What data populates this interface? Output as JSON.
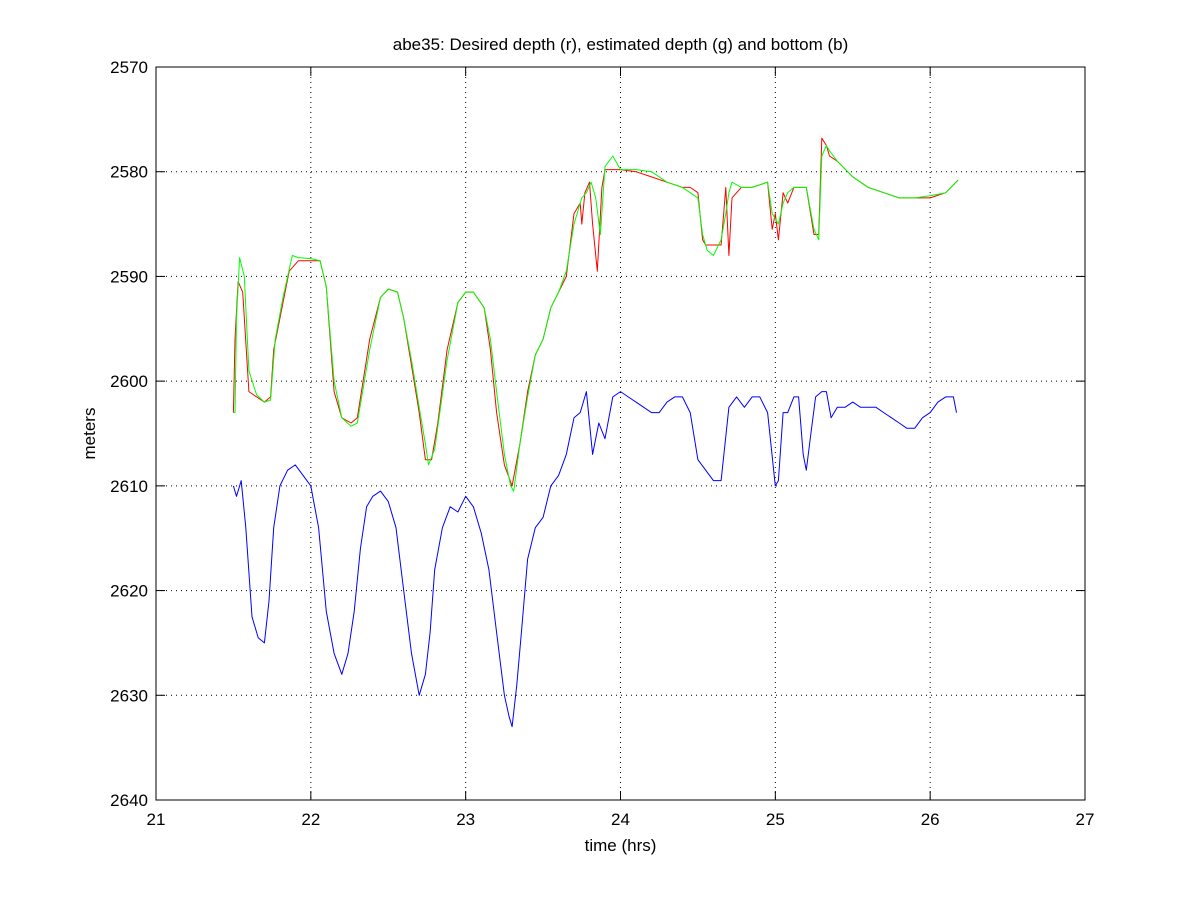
{
  "chart_data": {
    "type": "line",
    "title": "abe35: Desired depth (r), estimated depth (g) and bottom (b)",
    "xlabel": "time (hrs)",
    "ylabel": "meters",
    "xlim": [
      21,
      27
    ],
    "ylim": [
      2570,
      2640
    ],
    "y_reversed": true,
    "grid": true,
    "grid_style": "dotted",
    "xticks": [
      21,
      22,
      23,
      24,
      25,
      26,
      27
    ],
    "yticks": [
      2570,
      2580,
      2590,
      2600,
      2610,
      2620,
      2630,
      2640
    ],
    "xtick_labels": [
      "21",
      "22",
      "23",
      "24",
      "25",
      "26",
      "27"
    ],
    "ytick_labels": [
      "2570",
      "2580",
      "2590",
      "2600",
      "2610",
      "2620",
      "2630",
      "2640"
    ],
    "series": [
      {
        "key": "desired",
        "color": "#ff0000",
        "x": [
          21.5,
          21.51,
          21.53,
          21.56,
          21.6,
          21.65,
          21.7,
          21.74,
          21.76,
          21.8,
          21.86,
          21.92,
          22.0,
          22.06,
          22.1,
          22.15,
          22.2,
          22.26,
          22.3,
          22.38,
          22.45,
          22.5,
          22.56,
          22.6,
          22.65,
          22.7,
          22.74,
          22.78,
          22.82,
          22.88,
          22.95,
          23.0,
          23.05,
          23.12,
          23.16,
          23.2,
          23.25,
          23.3,
          23.35,
          23.4,
          23.45,
          23.5,
          23.55,
          23.6,
          23.65,
          23.7,
          23.74,
          23.75,
          23.77,
          23.8,
          23.82,
          23.85,
          23.88,
          23.9,
          23.92,
          24.0,
          24.1,
          24.2,
          24.3,
          24.4,
          24.45,
          24.5,
          24.53,
          24.55,
          24.6,
          24.65,
          24.68,
          24.7,
          24.72,
          24.78,
          24.85,
          24.95,
          24.98,
          25.0,
          25.02,
          25.05,
          25.08,
          25.12,
          25.15,
          25.2,
          25.25,
          25.28,
          25.3,
          25.33,
          25.35,
          25.4,
          25.5,
          25.6,
          25.7,
          25.8,
          25.9,
          26.0,
          26.1,
          26.18
        ],
        "y": [
          2603,
          2596,
          2590.5,
          2591.5,
          2601,
          2601.5,
          2602,
          2601.5,
          2597,
          2594,
          2589.5,
          2588.5,
          2588.5,
          2588.5,
          2591,
          2601,
          2603.5,
          2604,
          2603.5,
          2596,
          2592,
          2591.2,
          2591.5,
          2594,
          2598.5,
          2603,
          2607.5,
          2607.5,
          2604,
          2597,
          2592.5,
          2591.5,
          2591.5,
          2593,
          2597,
          2603,
          2608,
          2610,
          2606,
          2601,
          2597.5,
          2596,
          2593,
          2591.5,
          2590,
          2584,
          2583,
          2585,
          2582,
          2581,
          2585,
          2589.5,
          2581.5,
          2579.8,
          2579.8,
          2579.8,
          2580,
          2580.5,
          2581,
          2581.5,
          2581.5,
          2582,
          2586.5,
          2587,
          2587,
          2587,
          2581.5,
          2588,
          2582.5,
          2581.5,
          2581.5,
          2581,
          2585.5,
          2584,
          2586.5,
          2582,
          2583,
          2581.5,
          2581.5,
          2581.5,
          2586,
          2586,
          2576.8,
          2577.5,
          2578.5,
          2579,
          2580.5,
          2581.5,
          2582,
          2582.5,
          2582.5,
          2582.5,
          2582,
          2580.8
        ]
      },
      {
        "key": "estimated",
        "color": "#00ff00",
        "x": [
          21.5,
          21.51,
          21.52,
          21.54,
          21.57,
          21.6,
          21.65,
          21.7,
          21.74,
          21.77,
          21.82,
          21.88,
          21.92,
          22.0,
          22.06,
          22.1,
          22.15,
          22.2,
          22.26,
          22.3,
          22.38,
          22.45,
          22.5,
          22.56,
          22.6,
          22.65,
          22.7,
          22.74,
          22.76,
          22.8,
          22.88,
          22.95,
          23.0,
          23.05,
          23.12,
          23.16,
          23.2,
          23.25,
          23.29,
          23.31,
          23.35,
          23.4,
          23.45,
          23.5,
          23.55,
          23.6,
          23.65,
          23.7,
          23.75,
          23.78,
          23.81,
          23.84,
          23.87,
          23.9,
          23.95,
          24.0,
          24.1,
          24.2,
          24.3,
          24.4,
          24.45,
          24.5,
          24.53,
          24.56,
          24.6,
          24.65,
          24.68,
          24.7,
          24.72,
          24.78,
          24.85,
          24.95,
          24.98,
          25.0,
          25.02,
          25.05,
          25.08,
          25.12,
          25.15,
          25.2,
          25.25,
          25.28,
          25.3,
          25.33,
          25.35,
          25.4,
          25.5,
          25.6,
          25.7,
          25.8,
          25.9,
          26.0,
          26.1,
          26.18
        ],
        "y": [
          2603,
          2603,
          2594,
          2588.2,
          2590,
          2599,
          2601.3,
          2602,
          2601.8,
          2596,
          2592,
          2588,
          2588.2,
          2588.3,
          2588.5,
          2591,
          2600,
          2603.5,
          2604.3,
          2604,
          2597,
          2592,
          2591.2,
          2591.5,
          2594,
          2598,
          2602.5,
          2606,
          2608,
          2606.5,
          2598,
          2592.5,
          2591.5,
          2591.5,
          2593,
          2596,
          2601,
          2607,
          2610,
          2610.5,
          2606,
          2601.5,
          2597.5,
          2596,
          2593,
          2591.5,
          2589.5,
          2585,
          2582.5,
          2582,
          2581,
          2582.5,
          2586,
          2579.5,
          2578.5,
          2579.8,
          2579.8,
          2580,
          2581,
          2581.5,
          2582,
          2582.5,
          2586,
          2587.5,
          2588,
          2586.5,
          2584,
          2582,
          2581,
          2581.5,
          2581.5,
          2581,
          2584,
          2584.5,
          2585,
          2583,
          2582,
          2581.5,
          2581.5,
          2581.5,
          2585.5,
          2586.5,
          2578.5,
          2577.5,
          2578,
          2579,
          2580.5,
          2581.5,
          2582,
          2582.5,
          2582.5,
          2582.3,
          2582,
          2580.8
        ]
      },
      {
        "key": "bottom",
        "color": "#0000ff",
        "x": [
          21.5,
          21.52,
          21.55,
          21.58,
          21.62,
          21.66,
          21.7,
          21.73,
          21.76,
          21.8,
          21.85,
          21.9,
          21.95,
          22.0,
          22.05,
          22.1,
          22.15,
          22.2,
          22.24,
          22.28,
          22.32,
          22.36,
          22.4,
          22.45,
          22.5,
          22.55,
          22.6,
          22.65,
          22.7,
          22.74,
          22.77,
          22.8,
          22.85,
          22.9,
          22.95,
          23.0,
          23.05,
          23.1,
          23.15,
          23.2,
          23.25,
          23.28,
          23.3,
          23.33,
          23.36,
          23.4,
          23.45,
          23.5,
          23.55,
          23.6,
          23.65,
          23.7,
          23.74,
          23.78,
          23.82,
          23.86,
          23.9,
          23.95,
          24.0,
          24.05,
          24.1,
          24.15,
          24.2,
          24.25,
          24.3,
          24.35,
          24.4,
          24.45,
          24.5,
          24.55,
          24.6,
          24.65,
          24.7,
          24.75,
          24.8,
          24.85,
          24.9,
          24.95,
          25.0,
          25.02,
          25.05,
          25.08,
          25.12,
          25.15,
          25.18,
          25.2,
          25.23,
          25.26,
          25.3,
          25.33,
          25.36,
          25.4,
          25.45,
          25.5,
          25.55,
          25.6,
          25.65,
          25.7,
          25.75,
          25.8,
          25.85,
          25.9,
          25.95,
          26.0,
          26.05,
          26.1,
          26.15,
          26.17
        ],
        "y": [
          2610,
          2611,
          2609.5,
          2614,
          2622.5,
          2624.5,
          2625,
          2621,
          2614,
          2610,
          2608.5,
          2608,
          2609,
          2610,
          2614,
          2622,
          2626,
          2628,
          2626,
          2622,
          2616,
          2612,
          2611,
          2610.5,
          2611.5,
          2614,
          2620,
          2626,
          2630,
          2628,
          2624,
          2618,
          2614,
          2612,
          2612.5,
          2611,
          2612,
          2614.5,
          2618,
          2624,
          2630,
          2632,
          2633,
          2629,
          2624,
          2617,
          2614,
          2613,
          2610,
          2609,
          2607,
          2603.5,
          2603,
          2601,
          2607,
          2604,
          2605.5,
          2601.5,
          2601,
          2601.5,
          2602,
          2602.5,
          2603,
          2603,
          2602,
          2601.5,
          2601.5,
          2603,
          2607.5,
          2608.5,
          2609.5,
          2609.5,
          2602.5,
          2601.5,
          2602.5,
          2601.5,
          2601.5,
          2603,
          2610,
          2609.5,
          2603,
          2603,
          2601.5,
          2601.5,
          2607,
          2608.5,
          2605,
          2601.5,
          2601,
          2601,
          2603.5,
          2602.5,
          2602.5,
          2602,
          2602.5,
          2602.5,
          2602.5,
          2603,
          2603.5,
          2604,
          2604.5,
          2604.5,
          2603.5,
          2603,
          2602,
          2601.5,
          2601.5,
          2603
        ]
      }
    ]
  }
}
